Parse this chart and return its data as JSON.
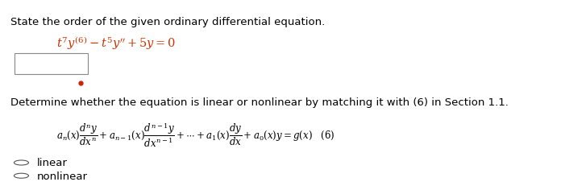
{
  "bg_color": "#ffffff",
  "title_text": "State the order of the given ordinary differential equation.",
  "title_color": "#000000",
  "title_fontsize": 9.5,
  "ode_text": "$t^7y^{(6)} - t^5y'' + 5y = 0$",
  "ode_color": "#cc3300",
  "ode_fontsize": 10.5,
  "box_color": "#888888",
  "dot_color": "#cc2200",
  "second_title": "Determine whether the equation is linear or nonlinear by matching it with (6) in Section 1.1.",
  "second_title_fontsize": 9.5,
  "formula_fontsize": 8.5,
  "formula_color": "#000000",
  "radio_color": "#555555",
  "label_color": "#000000",
  "label_fontsize": 9.5
}
